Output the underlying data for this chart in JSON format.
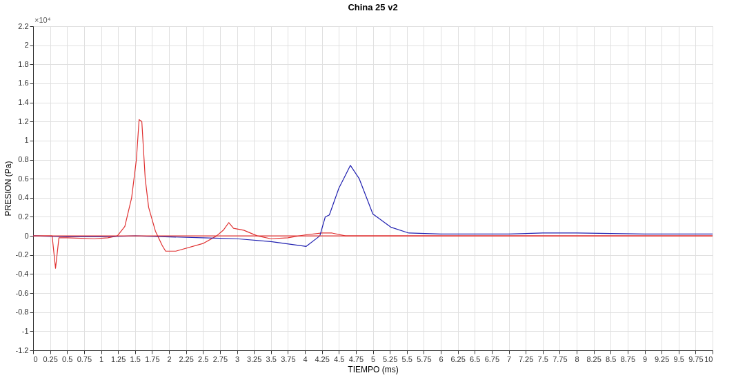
{
  "chart_data": {
    "type": "line",
    "title": "China 25 v2",
    "xlabel": "TIEMPO (ms)",
    "ylabel": "PRESION (Pa)",
    "annotations": [
      "×10⁴"
    ],
    "xlim": [
      0,
      10
    ],
    "xticks": [
      0,
      0.25,
      0.5,
      0.75,
      1,
      1.25,
      1.5,
      1.75,
      2,
      2.25,
      2.5,
      2.75,
      3,
      3.25,
      3.5,
      3.75,
      4,
      4.25,
      4.5,
      4.75,
      5,
      5.25,
      5.5,
      5.75,
      6,
      6.25,
      6.5,
      6.75,
      7,
      7.25,
      7.5,
      7.75,
      8,
      8.25,
      8.5,
      8.75,
      9,
      9.25,
      9.5,
      9.75,
      10
    ],
    "ylim": [
      -1.2,
      2.2
    ],
    "yticks": [
      -1.2,
      -1,
      -0.8,
      -0.6,
      -0.4,
      -0.2,
      0,
      0.2,
      0.4,
      0.6,
      0.8,
      1,
      1.2,
      1.4,
      1.6,
      1.8,
      2,
      2.2
    ],
    "grid": true,
    "line_style": "solid",
    "marker": "none",
    "ref_lines": [
      {
        "axis": "y",
        "value": 0,
        "color": "#e03030"
      }
    ],
    "series": [
      {
        "color": "#e03030",
        "x": [
          0,
          0.28,
          0.33,
          0.38,
          0.5,
          0.9,
          1.1,
          1.24,
          1.35,
          1.45,
          1.52,
          1.56,
          1.6,
          1.65,
          1.7,
          1.8,
          1.9,
          1.95,
          2.1,
          2.5,
          2.7,
          2.8,
          2.88,
          2.95,
          3.1,
          3.3,
          3.5,
          3.75,
          4.0,
          4.25,
          4.4,
          4.6,
          5,
          10
        ],
        "values": [
          0,
          0,
          -0.34,
          -0.02,
          -0.02,
          -0.03,
          -0.02,
          0,
          0.1,
          0.4,
          0.8,
          1.22,
          1.2,
          0.6,
          0.3,
          0.05,
          -0.1,
          -0.16,
          -0.16,
          -0.08,
          0,
          0.06,
          0.14,
          0.08,
          0.06,
          0,
          -0.03,
          -0.02,
          0.01,
          0.03,
          0.03,
          0,
          0,
          0
        ]
      },
      {
        "color": "#2020b0",
        "x": [
          0,
          0.5,
          1.0,
          1.5,
          2.5,
          3.0,
          3.5,
          4.02,
          4.22,
          4.3,
          4.36,
          4.5,
          4.67,
          4.8,
          5.0,
          5.27,
          5.53,
          6,
          7,
          7.5,
          8,
          9,
          10
        ],
        "values": [
          0,
          -0.01,
          -0.01,
          0,
          -0.02,
          -0.03,
          -0.06,
          -0.11,
          0,
          0.2,
          0.22,
          0.5,
          0.74,
          0.6,
          0.23,
          0.09,
          0.03,
          0.02,
          0.02,
          0.03,
          0.03,
          0.02,
          0.02
        ]
      }
    ]
  }
}
